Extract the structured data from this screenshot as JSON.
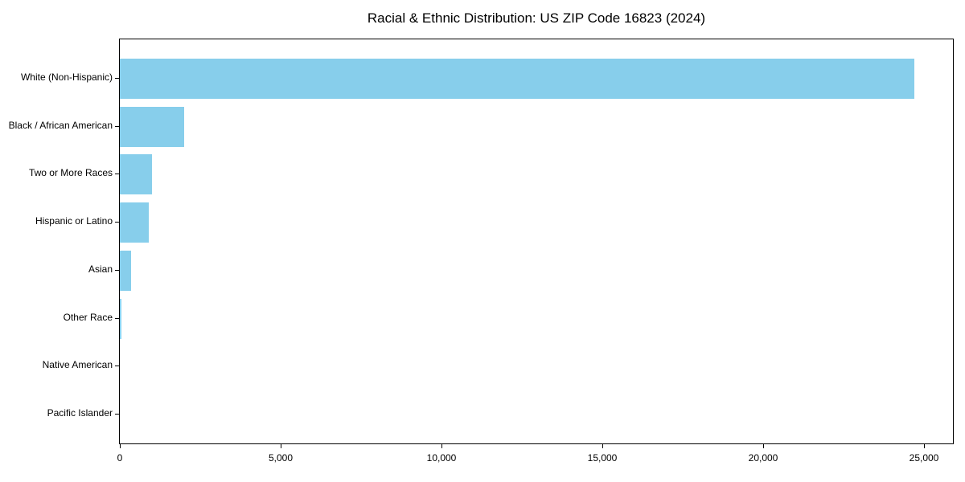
{
  "chart_data": {
    "type": "bar",
    "orientation": "horizontal",
    "title": "Racial & Ethnic Distribution: US ZIP Code 16823 (2024)",
    "categories": [
      "White (Non-Hispanic)",
      "Black / African American",
      "Two or More Races",
      "Hispanic or Latino",
      "Asian",
      "Other Race",
      "Native American",
      "Pacific Islander"
    ],
    "values": [
      24700,
      2000,
      1000,
      900,
      350,
      50,
      0,
      0
    ],
    "xlabel": "",
    "ylabel": "",
    "x_ticks": [
      0,
      5000,
      10000,
      15000,
      20000,
      25000
    ],
    "x_tick_labels": [
      "0",
      "5,000",
      "10,000",
      "15,000",
      "20,000",
      "25,000"
    ],
    "xlim": [
      0,
      25900
    ],
    "grid": false,
    "legend": null,
    "bar_color": "#87CEEB",
    "axis_color": "#000000",
    "text_color": "#000000",
    "background_color": "#FFFFFF"
  }
}
